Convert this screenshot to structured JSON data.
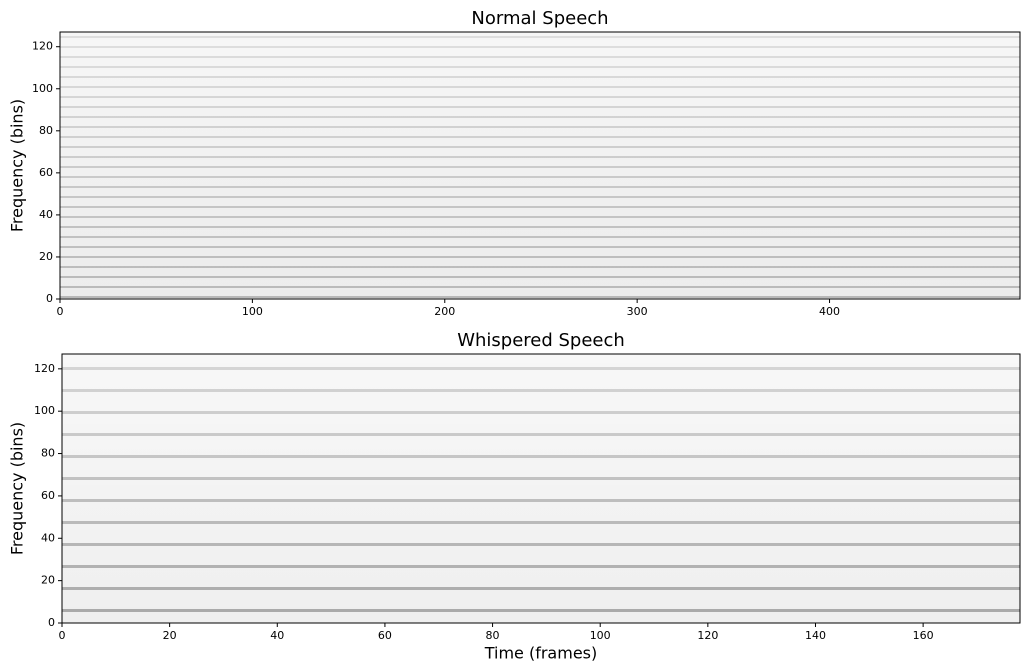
{
  "chart_data": [
    {
      "type": "heatmap",
      "title": "Normal Speech",
      "y_label": "Frequency (bins)",
      "xlim": [
        0,
        499
      ],
      "ylim": [
        0,
        127
      ],
      "xticks": [
        0,
        100,
        200,
        300,
        400
      ],
      "yticks": [
        0,
        20,
        40,
        60,
        80,
        100,
        120
      ],
      "colormap": "gray_r"
    },
    {
      "type": "heatmap",
      "title": "Whispered Speech",
      "x_label": "Time (frames)",
      "y_label": "Frequency (bins)",
      "xlim": [
        0,
        178
      ],
      "ylim": [
        0,
        127
      ],
      "xticks": [
        0,
        20,
        40,
        60,
        80,
        100,
        120,
        140,
        160
      ],
      "yticks": [
        0,
        20,
        40,
        60,
        80,
        100,
        120
      ],
      "colormap": "gray_r"
    }
  ]
}
